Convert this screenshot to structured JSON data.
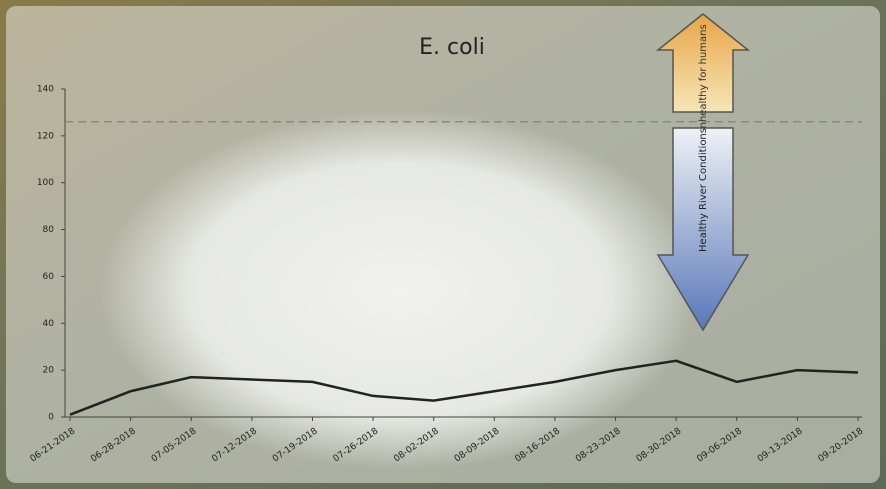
{
  "chart_data": {
    "type": "line",
    "title": "E. coli",
    "categories": [
      "06-21-2018",
      "06-28-2018",
      "07-05-2018",
      "07-12-2018",
      "07-19-2018",
      "07-26-2018",
      "08-02-2018",
      "08-09-2018",
      "08-16-2018",
      "08-23-2018",
      "08-30-2018",
      "09-06-2018",
      "09-13-2018",
      "09-20-2018"
    ],
    "values": [
      1,
      11,
      17,
      16,
      15,
      9,
      7,
      11,
      15,
      20,
      24,
      15,
      20,
      19
    ],
    "color": "#222222",
    "ylim": [
      0,
      140
    ],
    "yticks": [
      0,
      20,
      40,
      60,
      80,
      100,
      120,
      140
    ],
    "threshold": 126,
    "annotations": [
      "Unhealthy for humans",
      "Healthy River Conditions"
    ]
  }
}
